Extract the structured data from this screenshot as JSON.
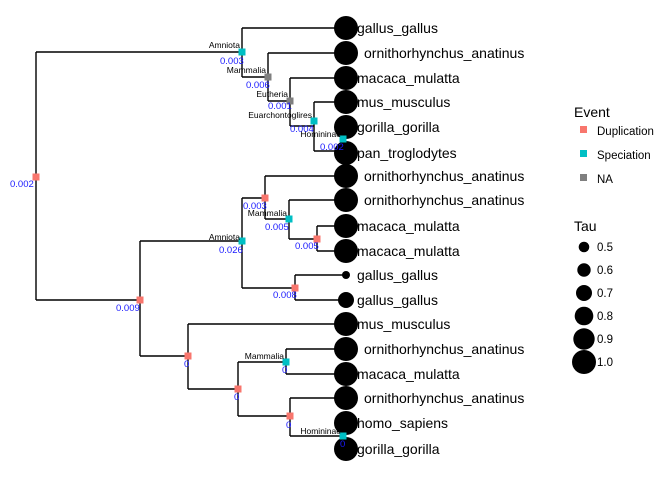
{
  "tree": {
    "tips": [
      {
        "name": "gallus_gallus",
        "tau": 1.0
      },
      {
        "name": "ornithorhynchus_anatinus",
        "tau": 1.0
      },
      {
        "name": "macaca_mulatta",
        "tau": 1.0
      },
      {
        "name": "mus_musculus",
        "tau": 1.0
      },
      {
        "name": "gorilla_gorilla",
        "tau": 1.0
      },
      {
        "name": "pan_troglodytes",
        "tau": 1.0
      },
      {
        "name": "ornithorhynchus_anatinus",
        "tau": 1.0
      },
      {
        "name": "ornithorhynchus_anatinus",
        "tau": 1.0
      },
      {
        "name": "macaca_mulatta",
        "tau": 1.0
      },
      {
        "name": "macaca_mulatta",
        "tau": 1.0
      },
      {
        "name": "gallus_gallus",
        "tau": 0.4
      },
      {
        "name": "gallus_gallus",
        "tau": 0.7
      },
      {
        "name": "mus_musculus",
        "tau": 1.0
      },
      {
        "name": "ornithorhynchus_anatinus",
        "tau": 1.0
      },
      {
        "name": "macaca_mulatta",
        "tau": 1.0
      },
      {
        "name": "ornithorhynchus_anatinus",
        "tau": 1.0
      },
      {
        "name": "homo_sapiens",
        "tau": 1.0
      },
      {
        "name": "gorilla_gorilla",
        "tau": 1.0
      }
    ],
    "nodes": [
      {
        "id": "root",
        "event": "Duplication",
        "branch_length": "0.002",
        "clade": ""
      },
      {
        "id": "n1",
        "event": "Speciation",
        "branch_length": "0.003",
        "clade": "Amniota"
      },
      {
        "id": "n2",
        "event": "NA",
        "branch_length": "0.006",
        "clade": "Mammalia"
      },
      {
        "id": "n3",
        "event": "NA",
        "branch_length": "0.001",
        "clade": "Eutheria"
      },
      {
        "id": "n4",
        "event": "Speciation",
        "branch_length": "0.004",
        "clade": "Euarchontoglires"
      },
      {
        "id": "n5",
        "event": "Speciation",
        "branch_length": "0.002",
        "clade": "Homininae"
      },
      {
        "id": "n6",
        "event": "Duplication",
        "branch_length": "0.009",
        "clade": ""
      },
      {
        "id": "n7",
        "event": "Speciation",
        "branch_length": "0.026",
        "clade": "Amniota"
      },
      {
        "id": "n8",
        "event": "Duplication",
        "branch_length": "0.003",
        "clade": ""
      },
      {
        "id": "n9",
        "event": "Speciation",
        "branch_length": "0.005",
        "clade": "Mammalia"
      },
      {
        "id": "n10",
        "event": "Duplication",
        "branch_length": "0.005",
        "clade": ""
      },
      {
        "id": "n11",
        "event": "Duplication",
        "branch_length": "0.008",
        "clade": ""
      },
      {
        "id": "n12",
        "event": "Duplication",
        "branch_length": "0",
        "clade": ""
      },
      {
        "id": "n13",
        "event": "Speciation",
        "branch_length": "0",
        "clade": "Mammalia"
      },
      {
        "id": "n14",
        "event": "Duplication",
        "branch_length": "0",
        "clade": ""
      },
      {
        "id": "n15",
        "event": "Duplication",
        "branch_length": "0",
        "clade": ""
      },
      {
        "id": "n16",
        "event": "Speciation",
        "branch_length": "0",
        "clade": "Homininae"
      }
    ]
  },
  "legend": {
    "event_title": "Event",
    "events": [
      {
        "label": "Duplication",
        "color": "#f8766d"
      },
      {
        "label": "Speciation",
        "color": "#00bfc4"
      },
      {
        "label": "NA",
        "color": "#7f7f7f"
      }
    ],
    "tau_title": "Tau",
    "tau_values": [
      {
        "label": "0.5",
        "value": 0.5
      },
      {
        "label": "0.6",
        "value": 0.6
      },
      {
        "label": "0.7",
        "value": 0.7
      },
      {
        "label": "0.8",
        "value": 0.8
      },
      {
        "label": "0.9",
        "value": 0.9
      },
      {
        "label": "1.0",
        "value": 1.0
      }
    ]
  }
}
